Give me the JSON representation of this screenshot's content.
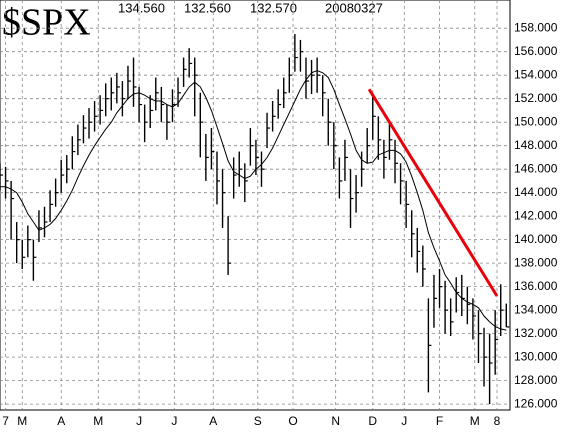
{
  "chart_data": {
    "type": "hlc",
    "title": "$SPX",
    "stats": [
      "134.560",
      "132.560",
      "132.570"
    ],
    "date": "20080327",
    "grid": true,
    "color": "#000000",
    "xlim": [
      0,
      275
    ],
    "ylim": [
      125.5,
      160.4
    ],
    "xticks": [
      {
        "value": 3,
        "label": "7"
      },
      {
        "value": 12,
        "label": "M"
      },
      {
        "value": 33,
        "label": "A"
      },
      {
        "value": 53,
        "label": "M"
      },
      {
        "value": 75,
        "label": "J"
      },
      {
        "value": 94,
        "label": "J"
      },
      {
        "value": 115,
        "label": "A"
      },
      {
        "value": 139,
        "label": "S"
      },
      {
        "value": 158,
        "label": "O"
      },
      {
        "value": 181,
        "label": "N"
      },
      {
        "value": 201,
        "label": "D"
      },
      {
        "value": 218,
        "label": "J"
      },
      {
        "value": 237,
        "label": "F"
      },
      {
        "value": 256,
        "label": "M"
      },
      {
        "value": 268,
        "label": "8"
      }
    ],
    "yticks": [
      {
        "value": 126,
        "label": "126.000"
      },
      {
        "value": 128,
        "label": "128.000"
      },
      {
        "value": 130,
        "label": "130.000"
      },
      {
        "value": 132,
        "label": "132.000"
      },
      {
        "value": 134,
        "label": "134.000"
      },
      {
        "value": 136,
        "label": "136.000"
      },
      {
        "value": 138,
        "label": "138.000"
      },
      {
        "value": 140,
        "label": "140.000"
      },
      {
        "value": 142,
        "label": "142.000"
      },
      {
        "value": 144,
        "label": "144.000"
      },
      {
        "value": 146,
        "label": "146.000"
      },
      {
        "value": 148,
        "label": "148.000"
      },
      {
        "value": 150,
        "label": "150.000"
      },
      {
        "value": 152,
        "label": "152.000"
      },
      {
        "value": 154,
        "label": "154.000"
      },
      {
        "value": 156,
        "label": "156.000"
      },
      {
        "value": 158,
        "label": "158.000"
      }
    ],
    "x": [
      0,
      3,
      6,
      9,
      12,
      15,
      18,
      21,
      24,
      27,
      30,
      33,
      36,
      39,
      42,
      45,
      48,
      51,
      54,
      57,
      60,
      63,
      66,
      69,
      72,
      75,
      78,
      81,
      84,
      87,
      90,
      93,
      96,
      99,
      102,
      105,
      108,
      111,
      114,
      117,
      120,
      123,
      126,
      129,
      132,
      135,
      138,
      141,
      144,
      147,
      150,
      153,
      156,
      159,
      162,
      165,
      168,
      171,
      174,
      177,
      180,
      183,
      186,
      189,
      192,
      195,
      198,
      201,
      204,
      207,
      210,
      213,
      216,
      219,
      222,
      225,
      228,
      231,
      234,
      237,
      240,
      243,
      246,
      249,
      252,
      255,
      258,
      261,
      264,
      267,
      270,
      273
    ],
    "high": [
      146.5,
      146.2,
      145,
      141.5,
      140,
      141.2,
      140,
      142.5,
      142.8,
      144.2,
      145.2,
      146.8,
      147.2,
      148.8,
      149.8,
      150.6,
      151.2,
      151.8,
      152.3,
      153.3,
      153.8,
      154.2,
      153.5,
      154.8,
      155.5,
      153,
      151.5,
      152.3,
      153.8,
      153,
      151.5,
      152.8,
      153.8,
      155.5,
      156.3,
      155.5,
      152.5,
      149,
      149.5,
      147.5,
      146,
      142,
      147,
      147.5,
      146.5,
      149.5,
      148.5,
      147.5,
      150.8,
      151.8,
      152.8,
      153.8,
      155.5,
      157.5,
      157,
      155.5,
      155.3,
      155.5,
      154,
      152,
      150,
      147,
      148.5,
      146,
      145.5,
      147.5,
      149.5,
      152.5,
      150.5,
      148.5,
      150,
      148.5,
      146.5,
      145,
      142.5,
      141,
      139.5,
      135,
      137,
      137.5,
      136.5,
      135,
      136.8,
      137,
      136,
      135,
      134,
      132.5,
      132,
      134,
      136.2,
      134.56
    ],
    "low": [
      144.2,
      143.5,
      140,
      138,
      137.5,
      138.5,
      136.5,
      139.8,
      140.2,
      141.5,
      142.8,
      144,
      144.8,
      146,
      147.2,
      148.2,
      148.6,
      149.2,
      149.8,
      150.5,
      151,
      151.6,
      150.5,
      152,
      151.3,
      150,
      148.3,
      149.5,
      151,
      150,
      148.5,
      150,
      151.3,
      153,
      153.8,
      150.5,
      147,
      145,
      146,
      143,
      141,
      137,
      143.5,
      144.5,
      143.2,
      146.3,
      145.5,
      144.5,
      147.8,
      149.2,
      150.3,
      151.2,
      152.5,
      154.3,
      154.3,
      152,
      152.4,
      152.5,
      150.5,
      148,
      146,
      143.5,
      145,
      141,
      142.3,
      144.5,
      146.5,
      148.5,
      146.8,
      145.2,
      146.8,
      144.8,
      143,
      141,
      138.5,
      137.2,
      136,
      127,
      132.5,
      134.2,
      132,
      131.8,
      133.8,
      133.5,
      132.8,
      131.5,
      129.5,
      127.5,
      126,
      128.5,
      131.8,
      132.56
    ],
    "close": [
      145.5,
      145,
      143.5,
      140,
      138.5,
      140,
      138.5,
      141,
      141.5,
      143,
      144,
      145.5,
      146,
      147.5,
      148.5,
      149.5,
      150,
      150.5,
      151,
      152,
      152.5,
      153,
      152,
      153.5,
      153,
      151.5,
      150,
      151,
      152.5,
      151.5,
      150,
      151.5,
      152.5,
      154.5,
      155,
      154,
      150,
      147,
      147.5,
      145,
      144,
      138,
      145.5,
      146,
      145,
      148,
      147,
      146,
      149.5,
      150.5,
      151.5,
      152.5,
      154,
      155.5,
      156,
      153.5,
      154,
      154,
      152.5,
      150,
      148,
      145,
      147,
      143.5,
      144,
      146,
      148,
      150.5,
      148.5,
      147,
      148.5,
      146.5,
      145,
      143,
      140.5,
      139,
      137.5,
      131,
      135,
      136,
      134,
      133,
      135.5,
      135,
      134.5,
      133.5,
      132,
      130,
      129.5,
      131.5,
      134,
      132.57
    ],
    "ma": [
      144.5,
      144.5,
      144.3,
      144,
      143.2,
      142.2,
      141.5,
      140.8,
      141,
      141.3,
      141.8,
      142.5,
      143.3,
      144.2,
      145.3,
      146.3,
      147.2,
      148,
      148.7,
      149.4,
      150,
      150.8,
      151.4,
      152,
      152.4,
      152.5,
      152.3,
      152,
      151.8,
      151.8,
      151.5,
      151.3,
      151.6,
      152.3,
      153,
      153.4,
      153,
      152.1,
      151,
      149.6,
      148.2,
      146.7,
      145.8,
      145.5,
      145.2,
      145.4,
      146,
      146.4,
      147,
      147.8,
      148.8,
      149.8,
      150.8,
      151.8,
      152.8,
      153.6,
      154.2,
      154.4,
      154.2,
      153.8,
      152.8,
      151.5,
      150.3,
      149,
      147.6,
      146.8,
      146.5,
      146.6,
      147.2,
      147.4,
      147.6,
      147.6,
      147.3,
      146.6,
      145.4,
      144,
      142.5,
      140.6,
      139.3,
      138.2,
      137,
      136.3,
      135.5,
      135,
      134.7,
      134.5,
      134.2,
      133.5,
      133,
      132.6,
      132.4,
      132.3
    ],
    "trendline": {
      "color": "#e8000b",
      "x": [
        199,
        268
      ],
      "values": [
        152.8,
        135.2
      ]
    }
  }
}
